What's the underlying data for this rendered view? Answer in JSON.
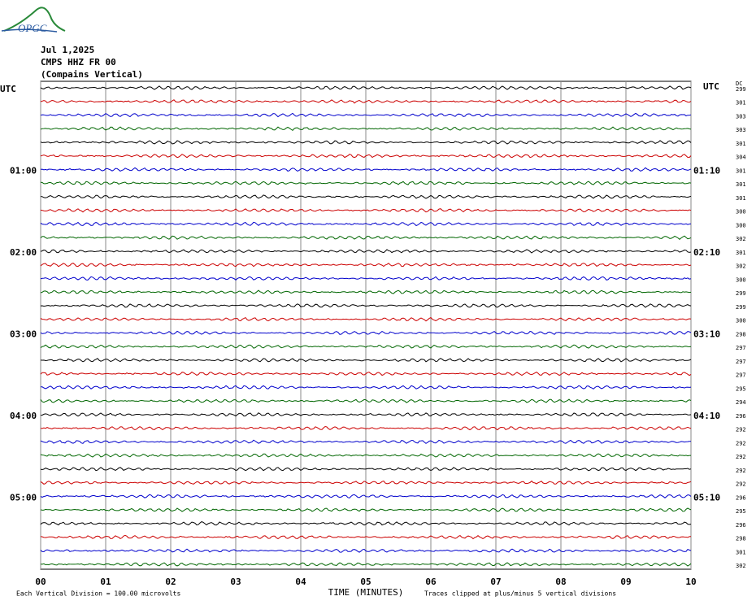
{
  "chart_data": {
    "type": "helicorder",
    "logo": "OPGC",
    "title": "Jul 1,2025",
    "subtitle": "CMPS HHZ FR 00",
    "location": "(Compains Vertical)",
    "left_header": "UTC",
    "right_header": "UTC",
    "dc_header": "DC",
    "left_labels": [
      "UTC",
      null,
      null,
      null,
      null,
      null,
      "01:00",
      null,
      null,
      null,
      null,
      null,
      "02:00",
      null,
      null,
      null,
      null,
      null,
      "03:00",
      null,
      null,
      null,
      null,
      null,
      "04:00",
      null,
      null,
      null,
      null,
      null,
      "05:00",
      null,
      null,
      null,
      null,
      null
    ],
    "right_labels": [
      null,
      null,
      null,
      null,
      null,
      null,
      "01:10",
      null,
      null,
      null,
      null,
      null,
      "02:10",
      null,
      null,
      null,
      null,
      null,
      "03:10",
      null,
      null,
      null,
      null,
      null,
      "04:10",
      null,
      null,
      null,
      null,
      null,
      "05:10",
      null,
      null,
      null,
      null,
      null
    ],
    "dc_values": [
      299,
      301,
      303,
      303,
      301,
      304,
      301,
      301,
      301,
      300,
      300,
      302,
      301,
      302,
      300,
      299,
      299,
      300,
      298,
      297,
      297,
      297,
      295,
      294,
      296,
      292,
      292,
      292,
      292,
      292,
      296,
      295,
      296,
      298,
      301,
      302
    ],
    "colors": [
      "#000000",
      "#cc0000",
      "#0000cc",
      "#006600"
    ],
    "xlim": [
      0,
      10
    ],
    "xticks": [
      {
        "value": 0,
        "label": "00"
      },
      {
        "value": 1,
        "label": "01"
      },
      {
        "value": 2,
        "label": "02"
      },
      {
        "value": 3,
        "label": "03"
      },
      {
        "value": 4,
        "label": "04"
      },
      {
        "value": 5,
        "label": "05"
      },
      {
        "value": 6,
        "label": "06"
      },
      {
        "value": 7,
        "label": "07"
      },
      {
        "value": 8,
        "label": "08"
      },
      {
        "value": 9,
        "label": "09"
      },
      {
        "value": 10,
        "label": "10"
      }
    ],
    "xlabel": "TIME (MINUTES)",
    "scale_note": "Each Vertical Division =  100.00 microvolts",
    "clip_note": "Traces clipped at plus/minus 5 vertical divisions"
  }
}
